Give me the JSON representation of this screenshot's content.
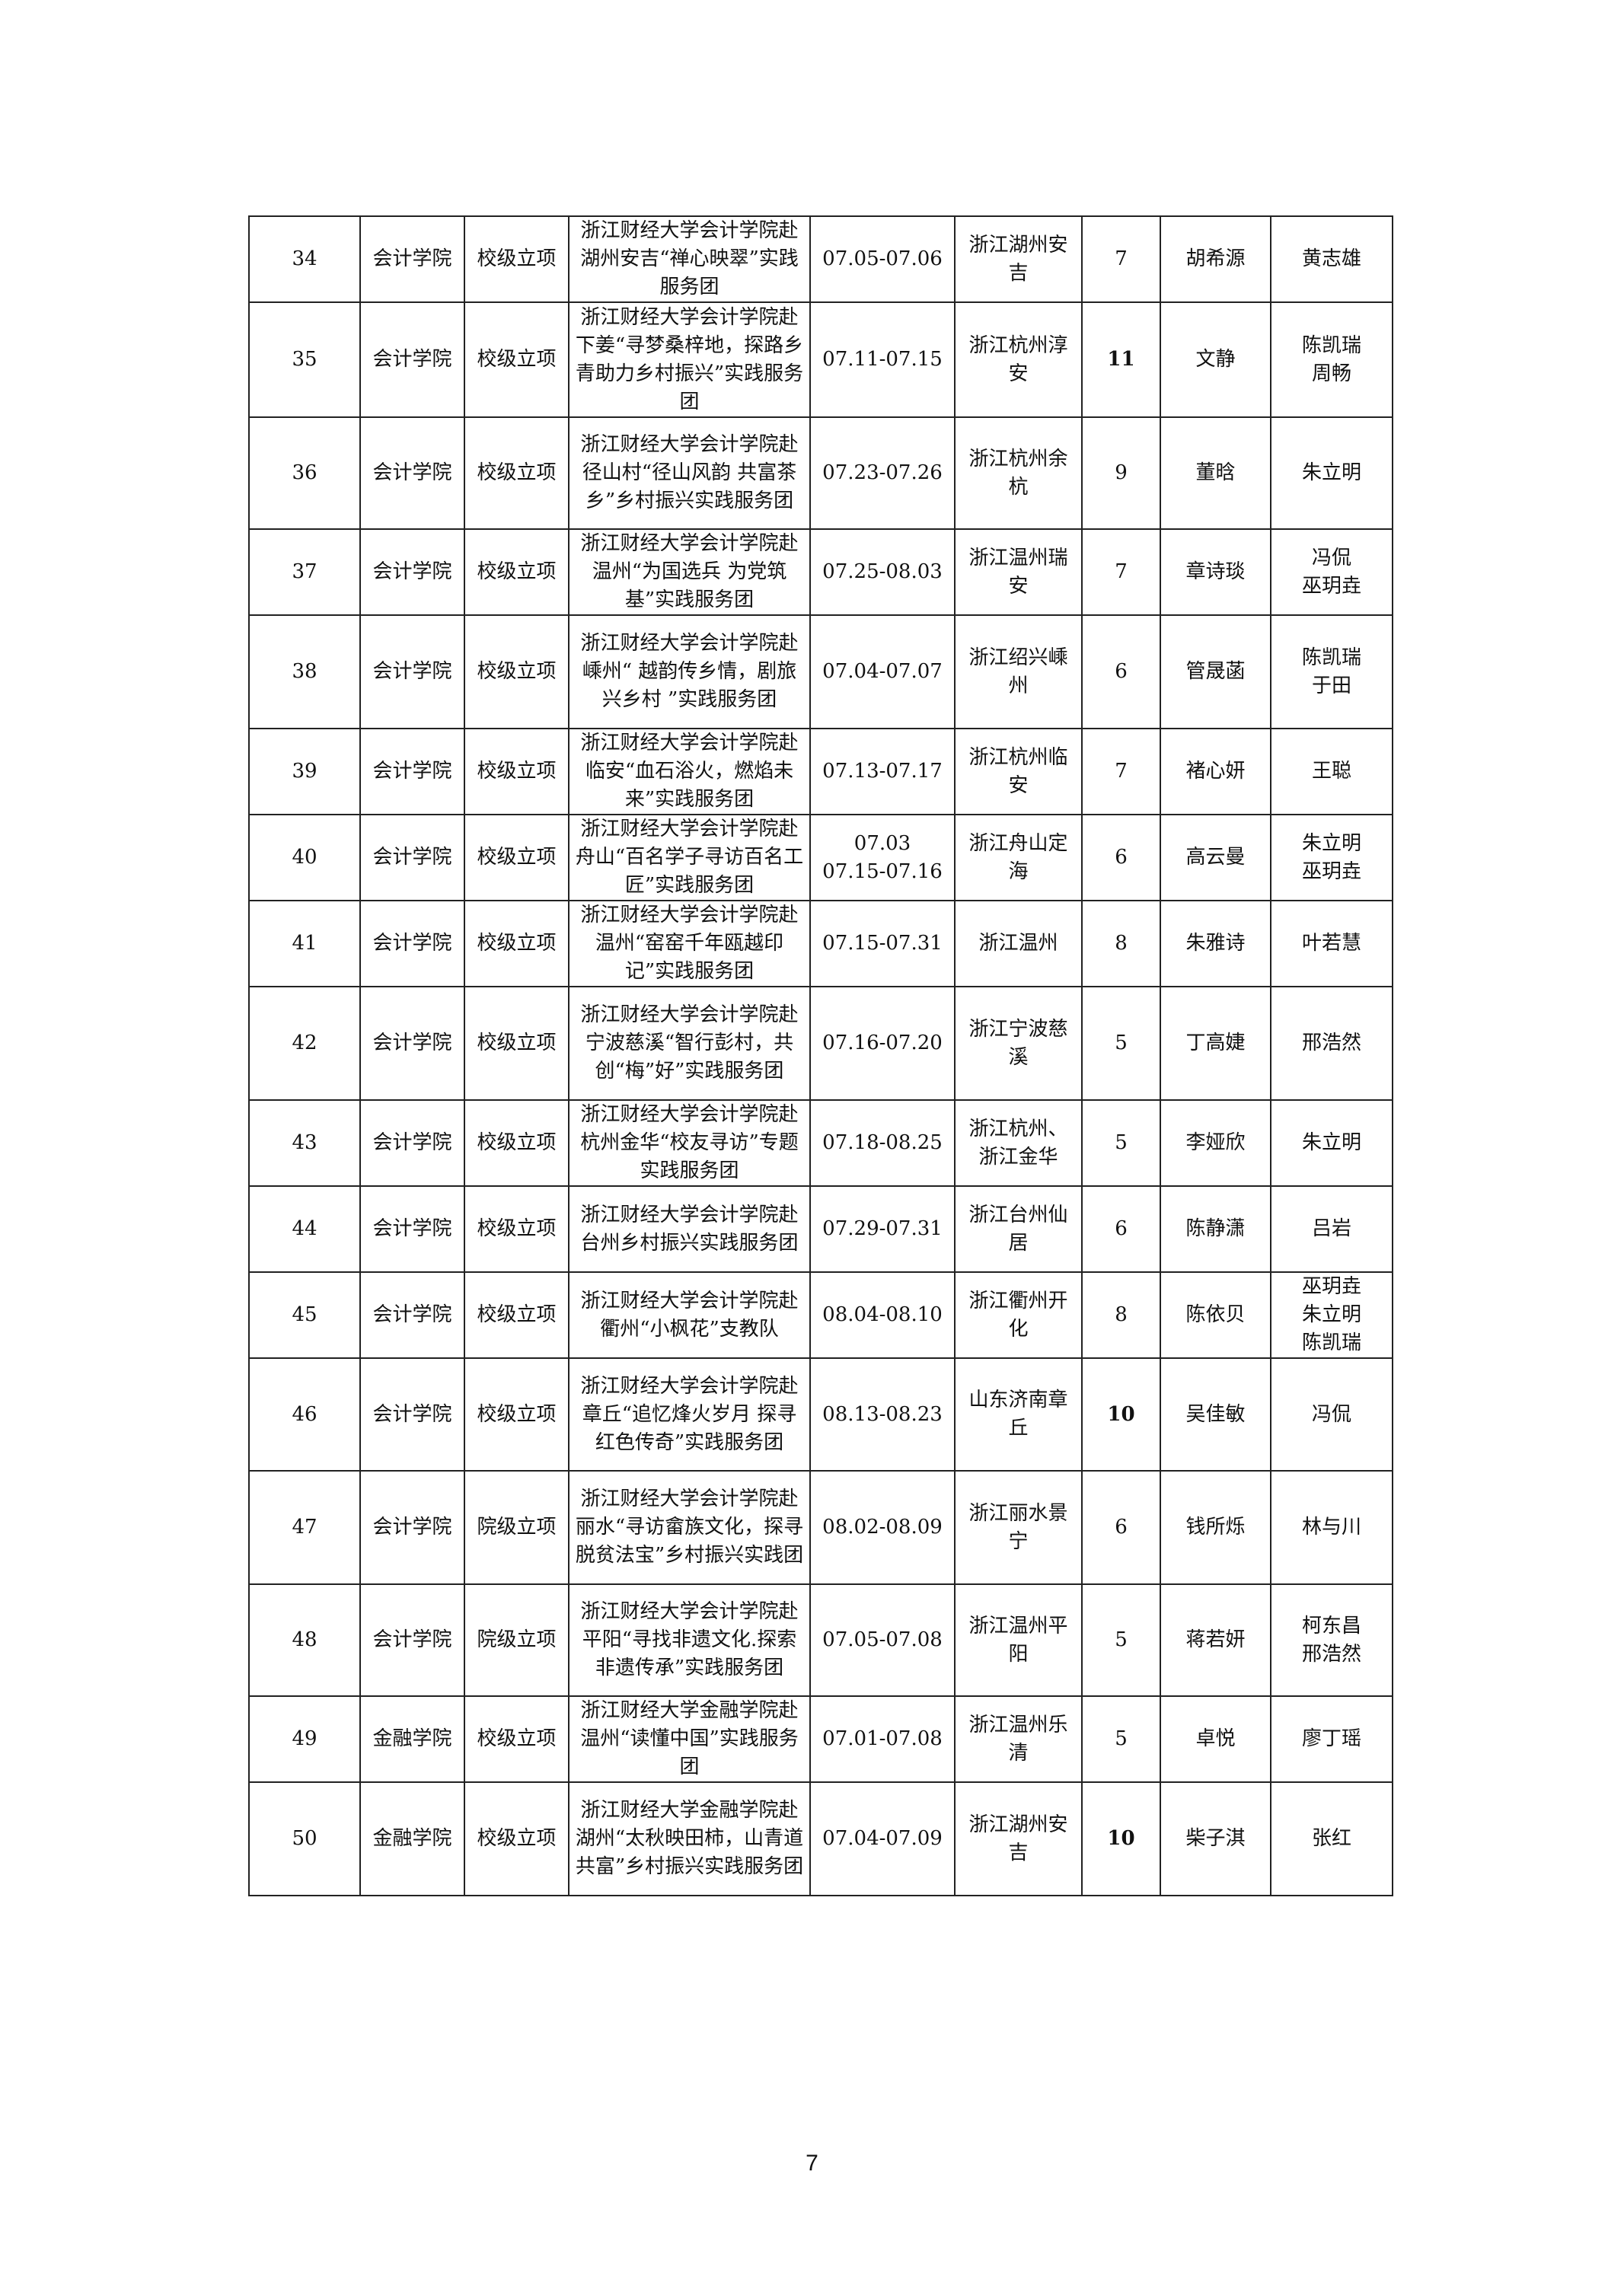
{
  "rows": [
    {
      "no": "34",
      "college": "会计学院",
      "level": "校级立项",
      "title": "浙江财经大学会计学院赴湖州安吉“禅心映翠”实践服务团",
      "date": "07.05-07.06",
      "place": "浙江湖州安吉",
      "count": "7",
      "leader": "胡希源",
      "advisor": "黄志雄"
    },
    {
      "no": "35",
      "college": "会计学院",
      "level": "校级立项",
      "title": "浙江财经大学会计学院赴下姜“寻梦桑梓地，探路乡青助力乡村振兴”实践服务团",
      "date": "07.11-07.15",
      "place": "浙江杭州淳安",
      "count": "11",
      "leader": "文静",
      "advisor": "陈凯瑞\n周畅"
    },
    {
      "no": "36",
      "college": "会计学院",
      "level": "校级立项",
      "title": "浙江财经大学会计学院赴径山村“径山风韵 共富茶乡”乡村振兴实践服务团",
      "date": "07.23-07.26",
      "place": "浙江杭州余杭",
      "count": "9",
      "leader": "董晗",
      "advisor": "朱立明"
    },
    {
      "no": "37",
      "college": "会计学院",
      "level": "校级立项",
      "title": "浙江财经大学会计学院赴温州“为国选兵 为党筑基”实践服务团",
      "date": "07.25-08.03",
      "place": "浙江温州瑞安",
      "count": "7",
      "leader": "章诗琰",
      "advisor": "冯侃\n巫玥垚"
    },
    {
      "no": "38",
      "college": "会计学院",
      "level": "校级立项",
      "title": "浙江财经大学会计学院赴嵊州“ 越韵传乡情，剧旅兴乡村 ”实践服务团",
      "date": "07.04-07.07",
      "place": "浙江绍兴嵊州",
      "count": "6",
      "leader": "管晟菡",
      "advisor": "陈凯瑞\n于田"
    },
    {
      "no": "39",
      "college": "会计学院",
      "level": "校级立项",
      "title": "浙江财经大学会计学院赴临安“血石浴火，燃焰未来”实践服务团",
      "date": "07.13-07.17",
      "place": "浙江杭州临安",
      "count": "7",
      "leader": "褚心妍",
      "advisor": "王聪"
    },
    {
      "no": "40",
      "college": "会计学院",
      "level": "校级立项",
      "title": "浙江财经大学会计学院赴舟山“百名学子寻访百名工匠”实践服务团",
      "date": "07.03\n07.15-07.16",
      "place": "浙江舟山定海",
      "count": "6",
      "leader": "高云曼",
      "advisor": "朱立明\n巫玥垚"
    },
    {
      "no": "41",
      "college": "会计学院",
      "level": "校级立项",
      "title": "浙江财经大学会计学院赴温州“窑窑千年瓯越印记”实践服务团",
      "date": "07.15-07.31",
      "place": "浙江温州",
      "count": "8",
      "leader": "朱雅诗",
      "advisor": "叶若慧"
    },
    {
      "no": "42",
      "college": "会计学院",
      "level": "校级立项",
      "title": "浙江财经大学会计学院赴宁波慈溪“智行彭村，共创“梅”好”实践服务团",
      "date": "07.16-07.20",
      "place": "浙江宁波慈溪",
      "count": "5",
      "leader": "丁高婕",
      "advisor": "邢浩然"
    },
    {
      "no": "43",
      "college": "会计学院",
      "level": "校级立项",
      "title": "浙江财经大学会计学院赴杭州金华“校友寻访”专题实践服务团",
      "date": "07.18-08.25",
      "place": "浙江杭州、浙江金华",
      "count": "5",
      "leader": "李娅欣",
      "advisor": "朱立明"
    },
    {
      "no": "44",
      "college": "会计学院",
      "level": "校级立项",
      "title": "浙江财经大学会计学院赴台州乡村振兴实践服务团",
      "date": "07.29-07.31",
      "place": "浙江台州仙居",
      "count": "6",
      "leader": "陈静潇",
      "advisor": "吕岩"
    },
    {
      "no": "45",
      "college": "会计学院",
      "level": "校级立项",
      "title": "浙江财经大学会计学院赴衢州“小枫花”支教队",
      "date": "08.04-08.10",
      "place": "浙江衢州开化",
      "count": "8",
      "leader": "陈依贝",
      "advisor": "巫玥垚\n朱立明\n陈凯瑞"
    },
    {
      "no": "46",
      "college": "会计学院",
      "level": "校级立项",
      "title": "浙江财经大学会计学院赴章丘“追忆烽火岁月 探寻红色传奇”实践服务团",
      "date": "08.13-08.23",
      "place": "山东济南章丘",
      "count": "10",
      "leader": "吴佳敏",
      "advisor": "冯侃"
    },
    {
      "no": "47",
      "college": "会计学院",
      "level": "院级立项",
      "title": "浙江财经大学会计学院赴丽水“寻访畲族文化，探寻脱贫法宝”乡村振兴实践团",
      "date": "08.02-08.09",
      "place": "浙江丽水景宁",
      "count": "6",
      "leader": "钱所烁",
      "advisor": "林与川"
    },
    {
      "no": "48",
      "college": "会计学院",
      "level": "院级立项",
      "title": "浙江财经大学会计学院赴平阳“寻找非遗文化.探索非遗传承”实践服务团",
      "date": "07.05-07.08",
      "place": "浙江温州平阳",
      "count": "5",
      "leader": "蒋若妍",
      "advisor": "柯东昌\n邢浩然"
    },
    {
      "no": "49",
      "college": "金融学院",
      "level": "校级立项",
      "title": "浙江财经大学金融学院赴温州“读懂中国”实践服务团",
      "date": "07.01-07.08",
      "place": "浙江温州乐清",
      "count": "5",
      "leader": "卓悦",
      "advisor": "廖丁瑶"
    },
    {
      "no": "50",
      "college": "金融学院",
      "level": "校级立项",
      "title": "浙江财经大学金融学院赴湖州“太秋映田柿，山青道共富”乡村振兴实践服务团",
      "date": "07.04-07.09",
      "place": "浙江湖州安吉",
      "count": "10",
      "leader": "柴子淇",
      "advisor": "张红"
    }
  ],
  "page_number": "7"
}
